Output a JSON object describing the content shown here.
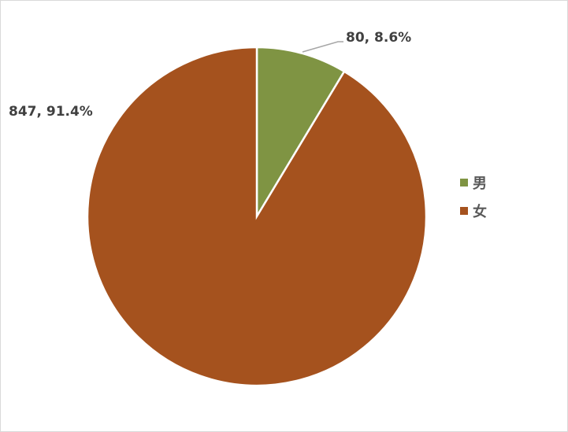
{
  "chart_data": {
    "type": "pie",
    "start_angle": "12 o'clock, clockwise",
    "slices": [
      {
        "name": "男",
        "value": 80,
        "percent": 8.6,
        "label": "80, 8.6%",
        "color": "#7f9443"
      },
      {
        "name": "女",
        "value": 847,
        "percent": 91.4,
        "label": "847, 91.4%",
        "color": "#a5521e"
      }
    ],
    "legend": {
      "placement": "right",
      "entries": [
        "男",
        "女"
      ]
    },
    "label_leader_color": "#a6a6a6"
  }
}
